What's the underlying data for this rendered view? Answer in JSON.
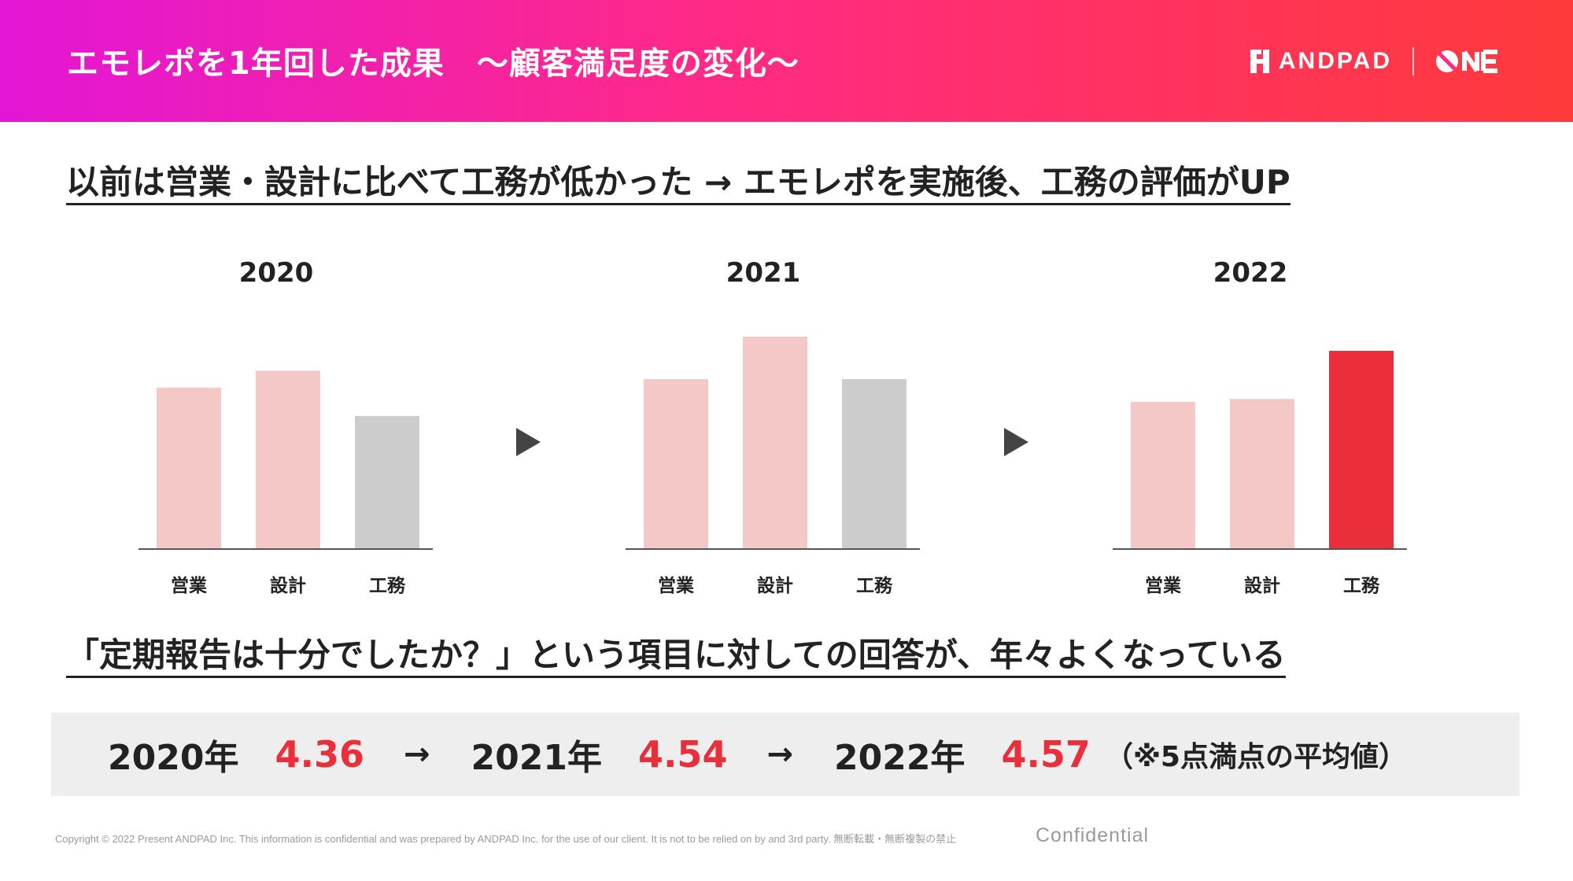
{
  "header": {
    "title": "エモレポを1年回した成果　～顧客満足度の変化～",
    "brand_name": "ANDPAD",
    "logo_text": "ONE",
    "gradient_colors": [
      "#e316d6",
      "#ff2a86",
      "#ff3a3a"
    ]
  },
  "headline_1": "以前は営業・設計に比べて工務が低かった → エモレポを実施後、工務の評価がUP",
  "headline_2": "「定期報告は十分でしたか？」という項目に対しての回答が、年々よくなっている",
  "chart_data": [
    {
      "type": "bar",
      "title": "2020",
      "categories": [
        "営業",
        "設計",
        "工務"
      ],
      "values": [
        4.57,
        4.63,
        4.47
      ],
      "colors": [
        "#f5c8c8",
        "#f5c8c8",
        "#cccccc"
      ]
    },
    {
      "type": "bar",
      "title": "2021",
      "categories": [
        "営業",
        "設計",
        "工務"
      ],
      "values": [
        4.6,
        4.75,
        4.6
      ],
      "colors": [
        "#f5c8c8",
        "#f5c8c8",
        "#cccccc"
      ]
    },
    {
      "type": "bar",
      "title": "2022",
      "categories": [
        "営業",
        "設計",
        "工務"
      ],
      "values": [
        4.52,
        4.53,
        4.7
      ],
      "colors": [
        "#f5c8c8",
        "#f5c8c8",
        "#ea2f3a"
      ]
    }
  ],
  "scores": {
    "items": [
      {
        "year": "2020年",
        "value": "4.36"
      },
      {
        "year": "2021年",
        "value": "4.54"
      },
      {
        "year": "2022年",
        "value": "4.57"
      }
    ],
    "arrow": "→",
    "note": "（※5点満点の平均値）",
    "value_color": "#ea2f3a"
  },
  "footer": {
    "copyright": "Copyright © 2022 Present ANDPAD Inc. This information is confidential and was prepared by ANDPAD Inc. for the use of our client. It is not to be relied on by and 3rd party.  無断転載・無断複製の禁止",
    "confidential": "Confidential"
  }
}
